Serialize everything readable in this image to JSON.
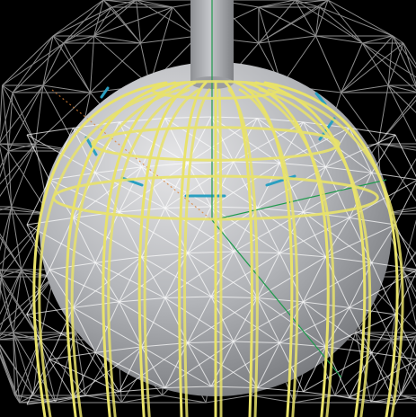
{
  "viewport": {
    "background_color": "#000000",
    "colors": {
      "sphere_light": "#e6e6e8",
      "sphere_mid": "#aeb0b4",
      "sphere_dark": "#76787c",
      "stem": "#a8aaae",
      "yellow_cage": "#e8e26a",
      "white_wire": "#ffffff",
      "teal_segment": "#2a9fc0",
      "axis_green": "#1f9a4c",
      "axis_orange": "#d9823a"
    },
    "objects": [
      "sphere",
      "stem-cylinder",
      "yellow-cage-curves",
      "white-geodesic-wireframe",
      "teal-edge-segments",
      "axis-gizmo"
    ]
  }
}
